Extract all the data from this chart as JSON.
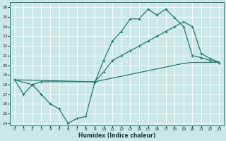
{
  "xlabel": "Humidex (Indice chaleur)",
  "bg_color": "#cce8e6",
  "line_color": "#267b6e",
  "xlim": [
    -0.5,
    23.5
  ],
  "ylim": [
    13.8,
    26.5
  ],
  "xticks": [
    0,
    1,
    2,
    3,
    4,
    5,
    6,
    7,
    8,
    9,
    10,
    11,
    12,
    13,
    14,
    15,
    16,
    17,
    18,
    19,
    20,
    21,
    22,
    23
  ],
  "yticks": [
    14,
    15,
    16,
    17,
    18,
    19,
    20,
    21,
    22,
    23,
    24,
    25,
    26
  ],
  "line1_x": [
    0,
    1,
    2,
    3,
    4,
    5,
    6,
    7,
    8,
    9,
    10,
    11,
    12,
    13,
    14,
    15,
    16,
    17,
    18,
    19,
    20,
    21,
    22,
    23
  ],
  "line1_y": [
    18.5,
    17.0,
    18.0,
    17.0,
    16.0,
    15.5,
    14.0,
    14.5,
    14.7,
    18.2,
    20.5,
    22.5,
    23.5,
    24.8,
    24.8,
    25.8,
    25.2,
    25.8,
    24.9,
    24.0,
    21.0,
    20.8,
    20.5,
    20.3
  ],
  "line2_x": [
    0,
    2,
    3,
    9,
    10,
    11,
    12,
    13,
    14,
    15,
    16,
    17,
    18,
    19,
    20,
    21,
    22,
    23
  ],
  "line2_y": [
    18.5,
    18.0,
    18.3,
    18.3,
    19.3,
    20.5,
    21.0,
    21.5,
    22.0,
    22.5,
    23.0,
    23.5,
    24.0,
    24.5,
    24.0,
    21.2,
    20.7,
    20.3
  ],
  "line3_x": [
    0,
    9,
    19,
    20,
    21,
    22,
    23
  ],
  "line3_y": [
    18.5,
    18.3,
    20.2,
    20.3,
    20.3,
    20.3,
    20.3
  ]
}
